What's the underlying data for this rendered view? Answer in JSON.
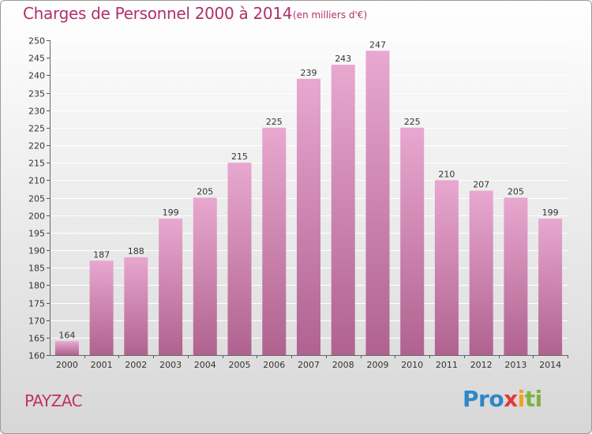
{
  "header": {
    "title": "Charges de Personnel 2000 à 2014",
    "subtitle": "(en milliers d'€)"
  },
  "footer": {
    "commune": "PAYZAC",
    "logo_parts": [
      "Pro",
      "x",
      "i",
      "ti"
    ]
  },
  "colors": {
    "bar_top": "#e8a8d0",
    "bar_bottom": "#b0628f",
    "grid": "#ffffff",
    "text_accent": "#b0306a"
  },
  "chart_data": {
    "type": "bar",
    "title": "Charges de Personnel 2000 à 2014",
    "subtitle": "(en milliers d'€)",
    "categories": [
      "2000",
      "2001",
      "2002",
      "2003",
      "2004",
      "2005",
      "2006",
      "2007",
      "2008",
      "2009",
      "2010",
      "2011",
      "2012",
      "2013",
      "2014"
    ],
    "values": [
      164,
      187,
      188,
      199,
      205,
      215,
      225,
      239,
      243,
      247,
      225,
      210,
      207,
      205,
      199
    ],
    "ylim": [
      160,
      250
    ],
    "yticks": [
      160,
      165,
      170,
      175,
      180,
      185,
      190,
      195,
      200,
      205,
      210,
      215,
      220,
      225,
      230,
      235,
      240,
      245,
      250
    ],
    "grid": true,
    "legend": "none"
  }
}
